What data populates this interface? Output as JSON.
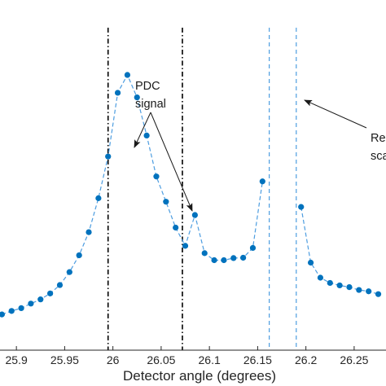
{
  "chart_data": {
    "type": "line",
    "xlabel": "Detector angle (degrees)",
    "xlim": [
      25.883,
      26.283
    ],
    "ylim": [
      0,
      1
    ],
    "x_ticks": [
      25.9,
      25.95,
      26,
      26.05,
      26.1,
      26.15,
      26.2,
      26.25
    ],
    "x_tick_labels": [
      "25.9",
      "25.95",
      "26",
      "26.05",
      "26.1",
      "26.15",
      "26.2",
      "26.25"
    ],
    "series": [
      {
        "color": "#0072BD",
        "style": "dashed-with-markers",
        "x": [
          25.885,
          25.895,
          25.905,
          25.915,
          25.925,
          25.935,
          25.945,
          25.955,
          25.965,
          25.975,
          25.985,
          25.995,
          26.005,
          26.015,
          26.025,
          26.035,
          26.045,
          26.055,
          26.065,
          26.075,
          26.085,
          26.095,
          26.105,
          26.115,
          26.125,
          26.135,
          26.145,
          26.155
        ],
        "y": [
          0.102,
          0.112,
          0.12,
          0.133,
          0.145,
          0.162,
          0.186,
          0.223,
          0.271,
          0.337,
          0.434,
          0.553,
          0.735,
          0.786,
          0.722,
          0.613,
          0.496,
          0.424,
          0.35,
          0.298,
          0.386,
          0.277,
          0.257,
          0.257,
          0.263,
          0.264,
          0.292,
          0.482
        ]
      },
      {
        "color": "#0072BD",
        "style": "dashed-with-markers",
        "x": [
          26.195,
          26.205,
          26.215,
          26.225,
          26.235,
          26.245,
          26.255,
          26.265,
          26.275
        ],
        "y": [
          0.409,
          0.25,
          0.207,
          0.192,
          0.185,
          0.18,
          0.172,
          0.168,
          0.16
        ]
      }
    ],
    "vertical_lines": [
      {
        "x": 25.995,
        "style": "dash-dot",
        "color": "#000000"
      },
      {
        "x": 26.072,
        "style": "dash-dot",
        "color": "#000000"
      },
      {
        "x": 26.162,
        "style": "dashed",
        "color": "#4d9de0"
      },
      {
        "x": 26.19,
        "style": "dashed",
        "color": "#4d9de0"
      }
    ],
    "annotations": [
      {
        "lines": [
          "PDC",
          "signal"
        ]
      },
      {
        "lines": [
          "Re",
          "sca"
        ]
      }
    ]
  }
}
